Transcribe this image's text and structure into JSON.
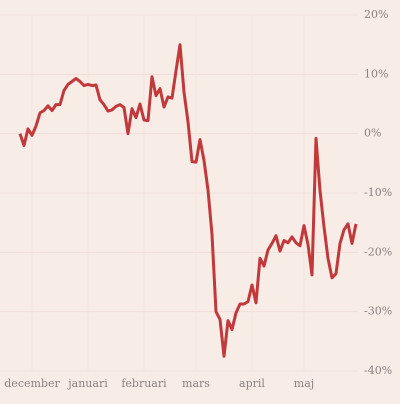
{
  "chart_data": {
    "type": "line",
    "categories": [
      null,
      null,
      null,
      "december",
      null,
      null,
      null,
      null,
      null,
      null,
      null,
      null,
      null,
      null,
      null,
      null,
      null,
      "januari",
      null,
      null,
      null,
      null,
      null,
      null,
      null,
      null,
      null,
      null,
      null,
      null,
      null,
      "februari",
      null,
      null,
      null,
      null,
      null,
      null,
      null,
      null,
      null,
      null,
      null,
      null,
      "mars",
      null,
      null,
      null,
      null,
      null,
      null,
      null,
      null,
      null,
      null,
      null,
      null,
      null,
      "april",
      null,
      null,
      null,
      null,
      null,
      null,
      null,
      null,
      null,
      null,
      null,
      null,
      "maj",
      null,
      null,
      null,
      null,
      null,
      null,
      null,
      null,
      null,
      null,
      null,
      null,
      null
    ],
    "series": [
      {
        "color": "#c1393b",
        "values": [
          0,
          -2.0,
          0.8,
          -0.3,
          1.3,
          3.5,
          3.9,
          4.7,
          3.9,
          4.9,
          4.9,
          7.3,
          8.3,
          8.8,
          9.3,
          8.8,
          8.1,
          8.3,
          8.1,
          8.2,
          5.7,
          4.9,
          3.8,
          4.0,
          4.6,
          4.9,
          4.4,
          0,
          4.2,
          2.7,
          5.0,
          2.3,
          2.2,
          9.6,
          6.4,
          7.6,
          4.5,
          6.2,
          6.0,
          10.6,
          15.0,
          7.0,
          2.0,
          -4.7,
          -4.8,
          -1.0,
          -4.5,
          -9.5,
          -17,
          -30,
          -31.3,
          -37.5,
          -31.5,
          -33,
          -30.2,
          -28.7,
          -28.7,
          -28.3,
          -25.5,
          -28.5,
          -21,
          -22.3,
          -19.6,
          -18.5,
          -17.2,
          -19.8,
          -18,
          -18.4,
          -17.4,
          -18.4,
          -18.9,
          -15.5,
          -18.7,
          -23.8,
          -0.8,
          -9.6,
          -15.7,
          -21,
          -24.3,
          -23.6,
          -18.5,
          -16.2,
          -15.2,
          -18.5,
          -15.2
        ]
      }
    ],
    "ylim": [
      -40,
      20
    ],
    "yticks": [
      {
        "value": 20,
        "label": "20%"
      },
      {
        "value": 10,
        "label": "10%"
      },
      {
        "value": 0,
        "label": "0%"
      },
      {
        "value": -10,
        "label": "-10%"
      },
      {
        "value": -20,
        "label": "-20%"
      },
      {
        "value": -30,
        "label": "-30%"
      },
      {
        "value": -40,
        "label": "-40%"
      }
    ],
    "grid": true
  }
}
